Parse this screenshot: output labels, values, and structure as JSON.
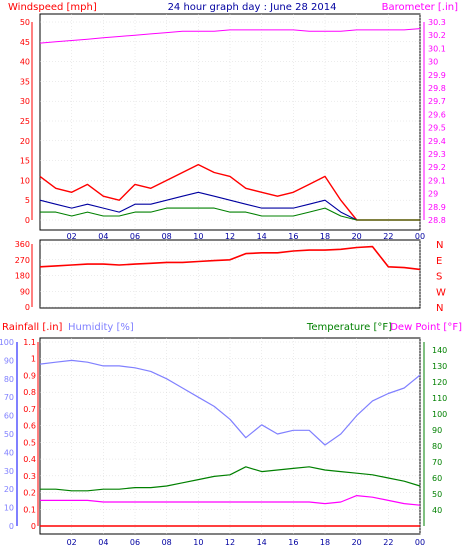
{
  "header": {
    "title": "24 hour graph day : June 28 2014",
    "left_label": "Windspeed [mph]",
    "right_label": "Barometer [.in]"
  },
  "hours": [
    "02",
    "04",
    "06",
    "08",
    "10",
    "12",
    "14",
    "16",
    "18",
    "20",
    "22",
    "00"
  ],
  "colors": {
    "wind": "#ff0000",
    "gust": "#ff0000",
    "avg": "#0000a0",
    "wind2": "#008000",
    "baro": "#ff00ff",
    "winddir": "#ff0000",
    "humidity": "#8080ff",
    "temperature": "#008000",
    "dewpoint": "#ff00ff",
    "rain": "#ff0000",
    "title": "#0000a0",
    "frame": "#000000"
  },
  "chart_data": [
    {
      "type": "line",
      "panel": "wind-baro",
      "ylim": [
        0,
        50
      ],
      "yticks": [
        "0",
        "5",
        "10",
        "15",
        "20",
        "25",
        "30",
        "35",
        "40",
        "45",
        "50"
      ],
      "y2lim": [
        28.8,
        30.3
      ],
      "y2ticks": [
        "28.8",
        "28.9",
        "29",
        "29.1",
        "29.2",
        "29.3",
        "29.4",
        "29.5",
        "29.6",
        "29.7",
        "29.8",
        "29.9",
        "30",
        "30.1",
        "30.2",
        "30.3"
      ],
      "x": [
        0,
        1,
        2,
        3,
        4,
        5,
        6,
        7,
        8,
        9,
        10,
        11,
        12,
        13,
        14,
        15,
        16,
        17,
        18,
        19,
        20,
        21,
        22,
        23,
        24
      ],
      "series": [
        {
          "key": "gust",
          "values": [
            11,
            8,
            7,
            9,
            6,
            5,
            9,
            8,
            10,
            12,
            14,
            12,
            11,
            8,
            7,
            6,
            7,
            9,
            11,
            5,
            0,
            0,
            0,
            0,
            0
          ]
        },
        {
          "key": "avg",
          "values": [
            5,
            4,
            3,
            4,
            3,
            2,
            4,
            4,
            5,
            6,
            7,
            6,
            5,
            4,
            3,
            3,
            3,
            4,
            5,
            2,
            0,
            0,
            0,
            0,
            0
          ]
        },
        {
          "key": "wind2",
          "values": [
            2,
            2,
            1,
            2,
            1,
            1,
            2,
            2,
            3,
            3,
            3,
            3,
            2,
            2,
            1,
            1,
            1,
            2,
            3,
            1,
            0,
            0,
            0,
            0,
            0
          ]
        },
        {
          "key": "baro",
          "values": [
            30.14,
            30.15,
            30.16,
            30.17,
            30.18,
            30.19,
            30.2,
            30.21,
            30.22,
            30.23,
            30.23,
            30.23,
            30.24,
            30.24,
            30.24,
            30.24,
            30.24,
            30.23,
            30.23,
            30.23,
            30.24,
            30.24,
            30.24,
            30.24,
            30.25
          ]
        }
      ]
    },
    {
      "type": "line",
      "panel": "wind-direction",
      "ylim": [
        0,
        360
      ],
      "yticks": [
        "0",
        "90",
        "180",
        "270",
        "360"
      ],
      "compass": [
        "N",
        "W",
        "S",
        "E",
        "N"
      ],
      "x": [
        0,
        1,
        2,
        3,
        4,
        5,
        6,
        7,
        8,
        9,
        10,
        11,
        12,
        13,
        14,
        15,
        16,
        17,
        18,
        19,
        20,
        21,
        22,
        23,
        24
      ],
      "values": [
        230,
        235,
        240,
        245,
        245,
        240,
        245,
        250,
        255,
        255,
        260,
        265,
        270,
        305,
        310,
        310,
        320,
        325,
        325,
        330,
        340,
        345,
        230,
        225,
        215
      ]
    },
    {
      "type": "line",
      "panel": "rain-hum-temp",
      "legend": {
        "rain": "Rainfall [.in]",
        "humidity": "Humidity [%]",
        "temperature": "Temperature [°F]",
        "dewpoint": "Dew Point [°F]"
      },
      "rain_ylim": [
        0,
        1.1
      ],
      "rain_ticks": [
        "0",
        "0.1",
        "0.2",
        "0.3",
        "0.4",
        "0.5",
        "0.6",
        "0.7",
        "0.8",
        "0.9",
        "1",
        "1.1"
      ],
      "hum_ylim": [
        0,
        100
      ],
      "hum_ticks": [
        "0",
        "10",
        "20",
        "30",
        "40",
        "50",
        "60",
        "70",
        "80",
        "90",
        "100"
      ],
      "temp_ylim": [
        30,
        145
      ],
      "temp_ticks": [
        "40",
        "50",
        "60",
        "70",
        "80",
        "90",
        "100",
        "110",
        "120",
        "130",
        "140"
      ],
      "x": [
        0,
        1,
        2,
        3,
        4,
        5,
        6,
        7,
        8,
        9,
        10,
        11,
        12,
        13,
        14,
        15,
        16,
        17,
        18,
        19,
        20,
        21,
        22,
        23,
        24
      ],
      "series": [
        {
          "key": "humidity",
          "values": [
            88,
            89,
            90,
            89,
            87,
            87,
            86,
            84,
            80,
            75,
            70,
            65,
            58,
            48,
            55,
            50,
            52,
            52,
            44,
            50,
            60,
            68,
            72,
            75,
            82
          ]
        },
        {
          "key": "temperature",
          "values": [
            53,
            53,
            52,
            52,
            53,
            53,
            54,
            54,
            55,
            57,
            59,
            61,
            62,
            67,
            64,
            65,
            66,
            67,
            65,
            64,
            63,
            62,
            60,
            58,
            55
          ]
        },
        {
          "key": "dewpoint",
          "values": [
            46,
            46,
            46,
            46,
            45,
            45,
            45,
            45,
            45,
            45,
            45,
            45,
            45,
            45,
            45,
            45,
            45,
            45,
            44,
            45,
            49,
            48,
            46,
            44,
            43
          ]
        },
        {
          "key": "rain",
          "values": [
            0,
            0,
            0,
            0,
            0,
            0,
            0,
            0,
            0,
            0,
            0,
            0,
            0,
            0,
            0,
            0,
            0,
            0,
            0,
            0,
            0,
            0,
            0,
            0,
            0
          ]
        }
      ]
    }
  ]
}
